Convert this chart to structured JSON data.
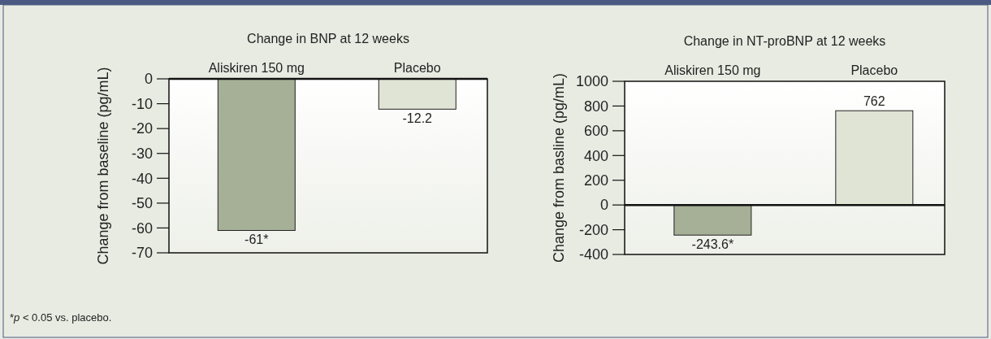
{
  "chart_data": [
    {
      "type": "bar",
      "title": "Change in BNP at 12 weeks",
      "ylabel": "Change from baseline (pg/mL)",
      "categories": [
        "Aliskiren 150 mg",
        "Placebo"
      ],
      "values": [
        -61,
        -12.2
      ],
      "colors": [
        "#a6b097",
        "#dfe4d5"
      ],
      "value_labels": [
        "-61*",
        "-12.2"
      ],
      "ylim": [
        -70,
        0
      ],
      "yticks": [
        0,
        -10,
        -20,
        -30,
        -40,
        -50,
        -60,
        -70
      ],
      "annotations": [
        "*p < 0.05 vs. placebo."
      ]
    },
    {
      "type": "bar",
      "title": "Change in NT-proBNP at 12 weeks",
      "ylabel": "Change from basline (pg/mL)",
      "categories": [
        "Aliskiren 150 mg",
        "Placebo"
      ],
      "values": [
        -243.6,
        762
      ],
      "colors": [
        "#a6b097",
        "#dfe4d5"
      ],
      "value_labels": [
        "-243.6*",
        "762"
      ],
      "ylim": [
        -400,
        1000
      ],
      "yticks": [
        1000,
        800,
        600,
        400,
        200,
        0,
        -200,
        -400
      ]
    }
  ]
}
